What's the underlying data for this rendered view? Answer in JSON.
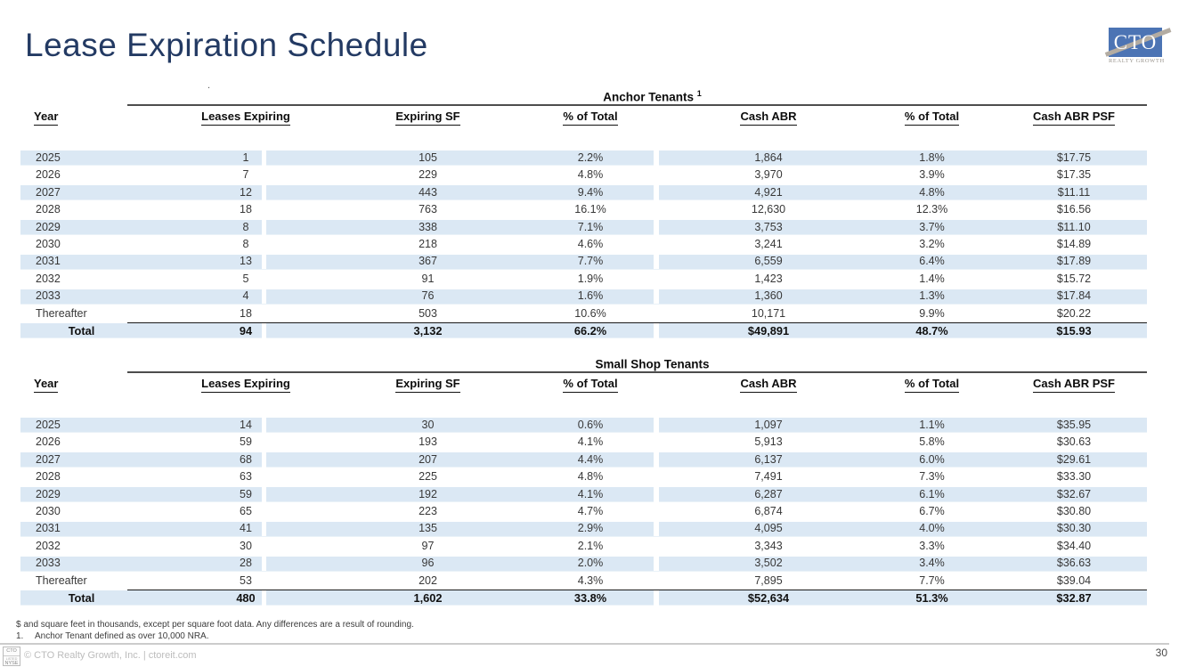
{
  "slide": {
    "title": "Lease Expiration Schedule",
    "stray_dot": "."
  },
  "logo": {
    "text": "CTO",
    "subtext": "REALTY GROWTH"
  },
  "colors": {
    "accent_navy": "#233A63",
    "logo_blue": "#4C74B4",
    "row_shading": "#DBE8F4"
  },
  "columns": [
    "Year",
    "Leases Expiring",
    "Expiring SF",
    "% of Total",
    "Cash ABR",
    "% of Total",
    "Cash ABR PSF"
  ],
  "tables": [
    {
      "title": "Anchor Tenants",
      "title_superscript": "1",
      "rows": [
        [
          "2025",
          "1",
          "105",
          "2.2%",
          "1,864",
          "1.8%",
          "$17.75"
        ],
        [
          "2026",
          "7",
          "229",
          "4.8%",
          "3,970",
          "3.9%",
          "$17.35"
        ],
        [
          "2027",
          "12",
          "443",
          "9.4%",
          "4,921",
          "4.8%",
          "$11.11"
        ],
        [
          "2028",
          "18",
          "763",
          "16.1%",
          "12,630",
          "12.3%",
          "$16.56"
        ],
        [
          "2029",
          "8",
          "338",
          "7.1%",
          "3,753",
          "3.7%",
          "$11.10"
        ],
        [
          "2030",
          "8",
          "218",
          "4.6%",
          "3,241",
          "3.2%",
          "$14.89"
        ],
        [
          "2031",
          "13",
          "367",
          "7.7%",
          "6,559",
          "6.4%",
          "$17.89"
        ],
        [
          "2032",
          "5",
          "91",
          "1.9%",
          "1,423",
          "1.4%",
          "$15.72"
        ],
        [
          "2033",
          "4",
          "76",
          "1.6%",
          "1,360",
          "1.3%",
          "$17.84"
        ],
        [
          "Thereafter",
          "18",
          "503",
          "10.6%",
          "10,171",
          "9.9%",
          "$20.22"
        ]
      ],
      "total": [
        "Total",
        "94",
        "3,132",
        "66.2%",
        "$49,891",
        "48.7%",
        "$15.93"
      ]
    },
    {
      "title": "Small Shop Tenants",
      "title_superscript": "",
      "rows": [
        [
          "2025",
          "14",
          "30",
          "0.6%",
          "1,097",
          "1.1%",
          "$35.95"
        ],
        [
          "2026",
          "59",
          "193",
          "4.1%",
          "5,913",
          "5.8%",
          "$30.63"
        ],
        [
          "2027",
          "68",
          "207",
          "4.4%",
          "6,137",
          "6.0%",
          "$29.61"
        ],
        [
          "2028",
          "63",
          "225",
          "4.8%",
          "7,491",
          "7.3%",
          "$33.30"
        ],
        [
          "2029",
          "59",
          "192",
          "4.1%",
          "6,287",
          "6.1%",
          "$32.67"
        ],
        [
          "2030",
          "65",
          "223",
          "4.7%",
          "6,874",
          "6.7%",
          "$30.80"
        ],
        [
          "2031",
          "41",
          "135",
          "2.9%",
          "4,095",
          "4.0%",
          "$30.30"
        ],
        [
          "2032",
          "30",
          "97",
          "2.1%",
          "3,343",
          "3.3%",
          "$34.40"
        ],
        [
          "2033",
          "28",
          "96",
          "2.0%",
          "3,502",
          "3.4%",
          "$36.63"
        ],
        [
          "Thereafter",
          "53",
          "202",
          "4.3%",
          "7,895",
          "7.7%",
          "$39.04"
        ]
      ],
      "total": [
        "Total",
        "480",
        "1,602",
        "33.8%",
        "$52,634",
        "51.3%",
        "$32.87"
      ]
    }
  ],
  "footnotes": {
    "line1": "$ and square feet in thousands, except per square foot data. Any differences are a result of rounding.",
    "note1_number": "1.",
    "note1_text": "Anchor Tenant defined as over 10,000 NRA."
  },
  "footer": {
    "badge_top": "CTO",
    "badge_mid": "LISTED",
    "badge_bottom": "NYSE",
    "copyright": "© CTO Realty Growth, Inc. | ctoreit.com",
    "page_number": "30"
  }
}
